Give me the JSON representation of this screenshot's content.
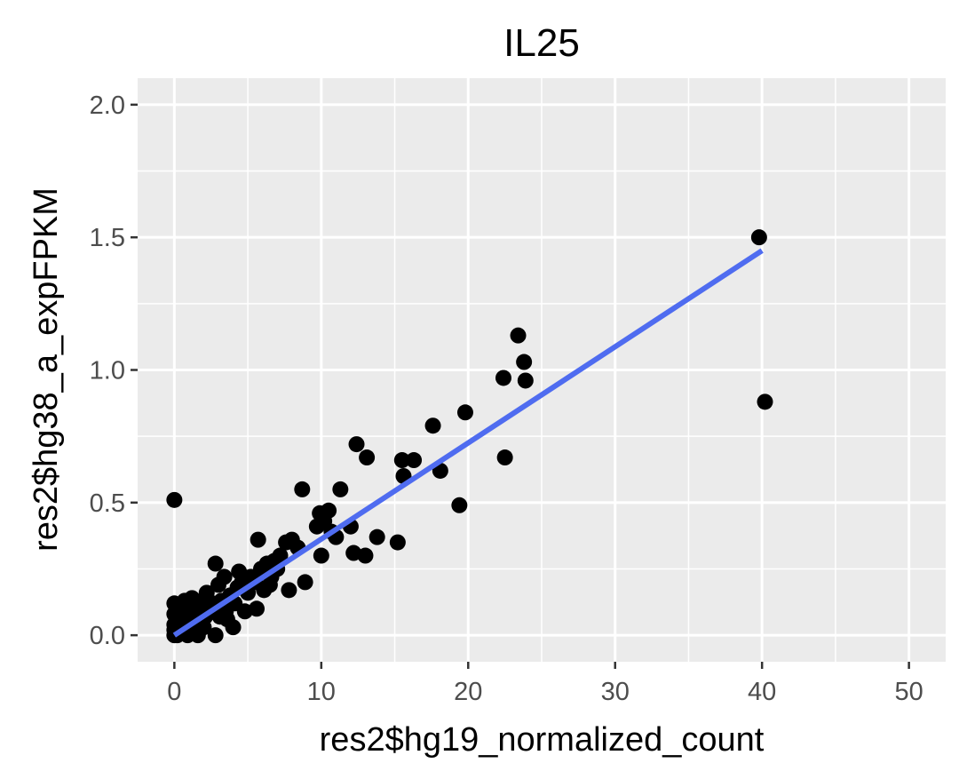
{
  "chart_data": {
    "type": "scatter",
    "title": "IL25",
    "xlabel": "res2$hg19_normalized_count",
    "ylabel": "res2$hg38_a_expFPKM",
    "xlim": [
      -2.5,
      52.5
    ],
    "ylim": [
      -0.1,
      2.1
    ],
    "x_ticks": [
      0,
      10,
      20,
      30,
      40,
      50
    ],
    "x_tick_labels": [
      "0",
      "10",
      "20",
      "30",
      "40",
      "50"
    ],
    "y_ticks": [
      0.0,
      0.5,
      1.0,
      1.5,
      2.0
    ],
    "y_tick_labels": [
      "0.0",
      "0.5",
      "1.0",
      "1.5",
      "2.0"
    ],
    "grid": true,
    "panel_background": "#ebebeb",
    "point_color": "#000000",
    "fit_line_color": "#4f6cf0",
    "fit_line": {
      "x": [
        0,
        40
      ],
      "y": [
        0.0,
        1.45
      ]
    },
    "points": [
      {
        "x": 39.8,
        "y": 1.5
      },
      {
        "x": 40.2,
        "y": 0.88
      },
      {
        "x": 23.4,
        "y": 1.13
      },
      {
        "x": 23.8,
        "y": 1.03
      },
      {
        "x": 23.9,
        "y": 0.96
      },
      {
        "x": 22.4,
        "y": 0.97
      },
      {
        "x": 19.8,
        "y": 0.84
      },
      {
        "x": 17.6,
        "y": 0.79
      },
      {
        "x": 22.5,
        "y": 0.67
      },
      {
        "x": 19.4,
        "y": 0.49
      },
      {
        "x": 18.1,
        "y": 0.62
      },
      {
        "x": 16.3,
        "y": 0.66
      },
      {
        "x": 15.5,
        "y": 0.66
      },
      {
        "x": 15.6,
        "y": 0.6
      },
      {
        "x": 15.2,
        "y": 0.35
      },
      {
        "x": 13.8,
        "y": 0.37
      },
      {
        "x": 13.1,
        "y": 0.67
      },
      {
        "x": 12.4,
        "y": 0.72
      },
      {
        "x": 12.0,
        "y": 0.41
      },
      {
        "x": 12.2,
        "y": 0.31
      },
      {
        "x": 13.0,
        "y": 0.3
      },
      {
        "x": 11.3,
        "y": 0.55
      },
      {
        "x": 10.5,
        "y": 0.47
      },
      {
        "x": 9.9,
        "y": 0.46
      },
      {
        "x": 10.2,
        "y": 0.43
      },
      {
        "x": 9.7,
        "y": 0.41
      },
      {
        "x": 10.7,
        "y": 0.39
      },
      {
        "x": 11.0,
        "y": 0.37
      },
      {
        "x": 10.0,
        "y": 0.3
      },
      {
        "x": 8.7,
        "y": 0.55
      },
      {
        "x": 8.0,
        "y": 0.36
      },
      {
        "x": 8.4,
        "y": 0.33
      },
      {
        "x": 8.9,
        "y": 0.2
      },
      {
        "x": 7.6,
        "y": 0.35
      },
      {
        "x": 7.2,
        "y": 0.3
      },
      {
        "x": 7.8,
        "y": 0.17
      },
      {
        "x": 5.7,
        "y": 0.36
      },
      {
        "x": 6.3,
        "y": 0.27
      },
      {
        "x": 6.6,
        "y": 0.22
      },
      {
        "x": 6.1,
        "y": 0.17
      },
      {
        "x": 5.6,
        "y": 0.1
      },
      {
        "x": 2.8,
        "y": 0.27
      },
      {
        "x": 3.4,
        "y": 0.22
      },
      {
        "x": 3.2,
        "y": 0.13
      },
      {
        "x": 3.1,
        "y": 0.07
      },
      {
        "x": 2.8,
        "y": 0.0
      },
      {
        "x": 3.6,
        "y": 0.06
      },
      {
        "x": 4.1,
        "y": 0.12
      },
      {
        "x": 4.6,
        "y": 0.2
      },
      {
        "x": 5.0,
        "y": 0.16
      },
      {
        "x": 5.2,
        "y": 0.22
      },
      {
        "x": 4.3,
        "y": 0.18
      },
      {
        "x": 3.8,
        "y": 0.15
      },
      {
        "x": 2.4,
        "y": 0.1
      },
      {
        "x": 2.1,
        "y": 0.07
      },
      {
        "x": 1.8,
        "y": 0.09
      },
      {
        "x": 1.5,
        "y": 0.05
      },
      {
        "x": 1.3,
        "y": 0.12
      },
      {
        "x": 1.0,
        "y": 0.03
      },
      {
        "x": 0.8,
        "y": 0.08
      },
      {
        "x": 0.6,
        "y": 0.05
      },
      {
        "x": 0.5,
        "y": 0.1
      },
      {
        "x": 0.4,
        "y": 0.02
      },
      {
        "x": 0.3,
        "y": 0.06
      },
      {
        "x": 0.2,
        "y": 0.0
      },
      {
        "x": 0.1,
        "y": 0.03
      },
      {
        "x": 0.0,
        "y": 0.0
      },
      {
        "x": 0.0,
        "y": 0.04
      },
      {
        "x": 0.0,
        "y": 0.08
      },
      {
        "x": 0.0,
        "y": 0.12
      },
      {
        "x": 0.0,
        "y": 0.51
      },
      {
        "x": 0.0,
        "y": 0.02
      },
      {
        "x": 0.9,
        "y": 0.0
      },
      {
        "x": 1.6,
        "y": 0.0
      },
      {
        "x": 2.0,
        "y": 0.03
      },
      {
        "x": 2.6,
        "y": 0.12
      },
      {
        "x": 3.5,
        "y": 0.09
      },
      {
        "x": 4.8,
        "y": 0.09
      },
      {
        "x": 5.5,
        "y": 0.2
      },
      {
        "x": 6.8,
        "y": 0.28
      },
      {
        "x": 7.0,
        "y": 0.25
      },
      {
        "x": 4.0,
        "y": 0.03
      },
      {
        "x": 1.2,
        "y": 0.14
      },
      {
        "x": 0.7,
        "y": 0.13
      },
      {
        "x": 2.2,
        "y": 0.16
      },
      {
        "x": 1.9,
        "y": 0.13
      },
      {
        "x": 3.0,
        "y": 0.19
      },
      {
        "x": 4.4,
        "y": 0.24
      },
      {
        "x": 5.9,
        "y": 0.25
      },
      {
        "x": 6.5,
        "y": 0.19
      }
    ]
  }
}
